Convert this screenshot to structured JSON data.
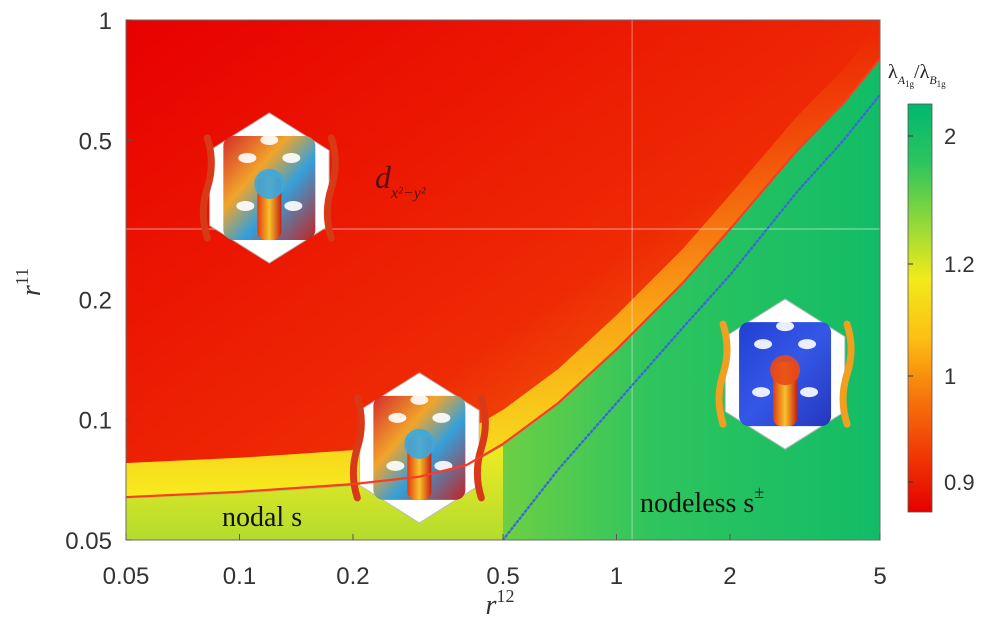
{
  "chart_data": {
    "type": "heatmap",
    "xlabel_base": "r",
    "xlabel_sup": "12",
    "ylabel_base": "r",
    "ylabel_sup": "11",
    "x_scale": "log",
    "y_scale": "log",
    "xlim": [
      0.05,
      5
    ],
    "ylim": [
      0.05,
      1
    ],
    "x_ticks": [
      {
        "value": 0.05,
        "label": "0.05"
      },
      {
        "value": 0.1,
        "label": "0.1"
      },
      {
        "value": 0.2,
        "label": "0.2"
      },
      {
        "value": 0.5,
        "label": "0.5"
      },
      {
        "value": 1,
        "label": "1"
      },
      {
        "value": 2,
        "label": "2"
      },
      {
        "value": 5,
        "label": "5"
      }
    ],
    "y_ticks": [
      {
        "value": 0.05,
        "label": "0.05"
      },
      {
        "value": 0.1,
        "label": "0.1"
      },
      {
        "value": 0.2,
        "label": "0.2"
      },
      {
        "value": 0.5,
        "label": "0.5"
      },
      {
        "value": 1,
        "label": "1"
      }
    ],
    "colorbar": {
      "title_main": "λ",
      "title_num_sub": "A",
      "title_num_subsub": "1g",
      "title_den_sub": "B",
      "title_den_subsub": "1g",
      "ticks": [
        {
          "value": 0.9,
          "label": "0.9"
        },
        {
          "value": 1,
          "label": "1"
        },
        {
          "value": 1.2,
          "label": "1.2"
        },
        {
          "value": 2,
          "label": "2"
        }
      ],
      "colors": [
        "#e60000",
        "#f03a05",
        "#f7780c",
        "#fcc014",
        "#f2ea1a",
        "#8ed83a",
        "#2cc45f",
        "#00b870"
      ]
    },
    "boundary_lines": [
      {
        "style": "solid",
        "color": "#ff3a24",
        "points": [
          [
            0.05,
            0.064
          ],
          [
            0.1,
            0.066
          ],
          [
            0.2,
            0.069
          ],
          [
            0.3,
            0.072
          ],
          [
            0.4,
            0.077
          ],
          [
            0.5,
            0.087
          ],
          [
            0.7,
            0.11
          ],
          [
            1.0,
            0.15
          ],
          [
            1.5,
            0.22
          ],
          [
            2.0,
            0.3
          ],
          [
            3.0,
            0.47
          ],
          [
            4.0,
            0.62
          ],
          [
            5.0,
            0.8
          ]
        ]
      },
      {
        "style": "dotted",
        "color": "#3a68d8",
        "points": [
          [
            0.5,
            0.05
          ],
          [
            0.7,
            0.075
          ],
          [
            1.0,
            0.11
          ],
          [
            1.5,
            0.17
          ],
          [
            2.0,
            0.23
          ],
          [
            3.0,
            0.37
          ],
          [
            4.0,
            0.5
          ],
          [
            5.0,
            0.65
          ]
        ]
      }
    ],
    "annotations": [
      {
        "id": "d-wave",
        "main": "d",
        "sub": "x²−y²",
        "x": 0.27,
        "y": 0.38
      },
      {
        "id": "nodal-s",
        "main": "nodal s",
        "x": 0.175,
        "y": 0.056
      },
      {
        "id": "nodeless-s",
        "main": "nodeless s",
        "sup": "±",
        "x": 2.0,
        "y": 0.057
      }
    ],
    "insets": [
      {
        "id": "fermi-surface-d",
        "center": [
          0.12,
          0.38
        ],
        "theme": "mixed"
      },
      {
        "id": "fermi-surface-nodal",
        "center": [
          0.3,
          0.085
        ],
        "theme": "mixed"
      },
      {
        "id": "fermi-surface-nodeless",
        "center": [
          2.8,
          0.13
        ],
        "theme": "blue"
      }
    ],
    "grid": false
  }
}
